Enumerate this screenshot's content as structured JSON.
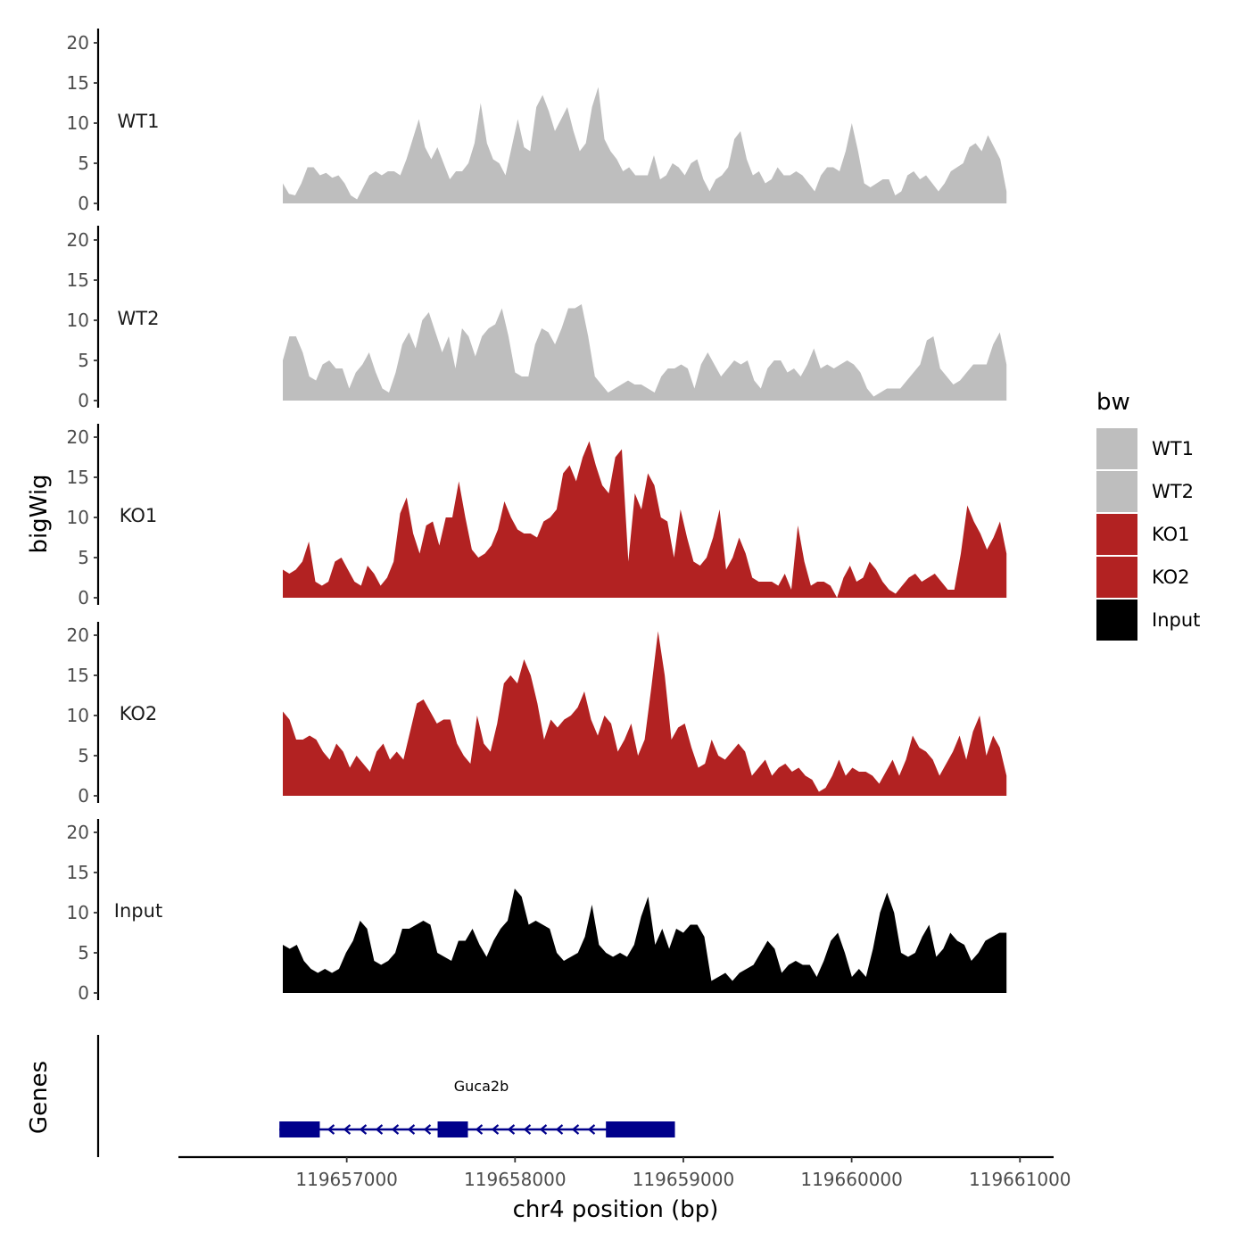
{
  "chart_data": {
    "type": "area",
    "ylabel": "bigWig",
    "xlabel": "chr4 position (bp)",
    "ylim": [
      0,
      21
    ],
    "y_ticks": [
      "0",
      "5",
      "10",
      "15",
      "20"
    ],
    "x_range": [
      119656620,
      119660920
    ],
    "x_axis_range": [
      119656000,
      119661200
    ],
    "x_ticks": [
      {
        "value": 119657000,
        "label": "119657000"
      },
      {
        "value": 119658000,
        "label": "119658000"
      },
      {
        "value": 119659000,
        "label": "119659000"
      },
      {
        "value": 119660000,
        "label": "119660000"
      },
      {
        "value": 119661000,
        "label": "119661000"
      }
    ],
    "legend": {
      "title": "bw",
      "position": "right",
      "entries": [
        {
          "label": "WT1",
          "color": "#bebebe"
        },
        {
          "label": "WT2",
          "color": "#bebebe"
        },
        {
          "label": "KO1",
          "color": "#b22222"
        },
        {
          "label": "KO2",
          "color": "#b22222"
        },
        {
          "label": "Input",
          "color": "#000000"
        }
      ]
    },
    "series": [
      {
        "name": "WT1",
        "color": "#bebebe",
        "values": [
          2.5,
          1.2,
          1.0,
          2.5,
          4.5,
          4.5,
          3.5,
          3.8,
          3.2,
          3.5,
          2.5,
          1.0,
          0.5,
          2.0,
          3.5,
          4.0,
          3.5,
          4.0,
          4.0,
          3.5,
          5.5,
          8.0,
          10.5,
          7.0,
          5.5,
          7.0,
          5.0,
          3.0,
          4.0,
          4.0,
          5.0,
          7.5,
          12.5,
          7.5,
          5.5,
          5.0,
          3.5,
          7.0,
          10.5,
          7.0,
          6.5,
          12.0,
          13.5,
          11.5,
          9.0,
          10.5,
          12.0,
          9.0,
          6.5,
          7.5,
          12.0,
          14.5,
          8.0,
          6.5,
          5.5,
          4.0,
          4.5,
          3.5,
          3.5,
          3.5,
          6.0,
          3.0,
          3.5,
          5.0,
          4.5,
          3.5,
          5.0,
          5.5,
          3.0,
          1.5,
          3.0,
          3.5,
          4.5,
          8.0,
          9.0,
          5.5,
          3.5,
          4.0,
          2.5,
          3.0,
          4.5,
          3.5,
          3.5,
          4.0,
          3.5,
          2.5,
          1.5,
          3.5,
          4.5,
          4.5,
          4.0,
          6.5,
          10.0,
          6.5,
          2.5,
          2.0,
          2.5,
          3.0,
          3.0,
          1.0,
          1.5,
          3.5,
          4.0,
          3.0,
          3.5,
          2.5,
          1.5,
          2.5,
          4.0,
          4.5,
          5.0,
          7.0,
          7.5,
          6.5,
          8.5,
          7.0,
          5.5,
          1.5
        ]
      },
      {
        "name": "WT2",
        "color": "#bebebe",
        "values": [
          5.0,
          8.0,
          8.0,
          6.0,
          3.0,
          2.5,
          4.5,
          5.0,
          4.0,
          4.0,
          1.5,
          3.5,
          4.5,
          6.0,
          3.5,
          1.5,
          1.0,
          3.5,
          7.0,
          8.5,
          6.5,
          10.0,
          11.0,
          8.5,
          6.0,
          8.0,
          4.0,
          9.0,
          8.0,
          5.5,
          8.0,
          9.0,
          9.5,
          11.5,
          8.0,
          3.5,
          3.0,
          3.0,
          7.0,
          9.0,
          8.5,
          7.0,
          9.0,
          11.5,
          11.5,
          12.0,
          8.0,
          3.0,
          2.0,
          1.0,
          1.5,
          2.0,
          2.5,
          2.0,
          2.0,
          1.5,
          1.0,
          3.0,
          4.0,
          4.0,
          4.5,
          4.0,
          1.5,
          4.5,
          6.0,
          4.5,
          3.0,
          4.0,
          5.0,
          4.5,
          5.0,
          2.5,
          1.5,
          4.0,
          5.0,
          5.0,
          3.5,
          4.0,
          3.0,
          4.5,
          6.5,
          4.0,
          4.5,
          4.0,
          4.5,
          5.0,
          4.5,
          3.5,
          1.5,
          0.5,
          1.0,
          1.5,
          1.5,
          1.5,
          2.5,
          3.5,
          4.5,
          7.5,
          8.0,
          4.0,
          3.0,
          2.0,
          2.5,
          3.5,
          4.5,
          4.5,
          4.5,
          7.0,
          8.5,
          4.5
        ]
      },
      {
        "name": "KO1",
        "color": "#b22222",
        "values": [
          3.5,
          3.0,
          3.5,
          4.5,
          7.0,
          2.0,
          1.5,
          2.0,
          4.5,
          5.0,
          3.5,
          2.0,
          1.5,
          4.0,
          3.0,
          1.5,
          2.5,
          4.5,
          10.5,
          12.5,
          8.0,
          5.5,
          9.0,
          9.5,
          6.5,
          10.0,
          10.0,
          14.5,
          10.0,
          6.0,
          5.0,
          5.5,
          6.5,
          8.5,
          12.0,
          10.0,
          8.5,
          8.0,
          8.0,
          7.5,
          9.5,
          10.0,
          11.0,
          15.5,
          16.5,
          14.5,
          17.5,
          19.5,
          16.5,
          14.0,
          13.0,
          17.5,
          18.5,
          4.5,
          13.0,
          11.0,
          15.5,
          14.0,
          10.0,
          9.5,
          5.0,
          11.0,
          7.5,
          4.5,
          4.0,
          5.0,
          7.5,
          11.0,
          3.5,
          5.0,
          7.5,
          5.5,
          2.5,
          2.0,
          2.0,
          2.0,
          1.5,
          3.0,
          1.0,
          9.0,
          4.5,
          1.5,
          2.0,
          2.0,
          1.5,
          0.0,
          2.5,
          4.0,
          2.0,
          2.5,
          4.5,
          3.5,
          2.0,
          1.0,
          0.5,
          1.5,
          2.5,
          3.0,
          2.0,
          2.5,
          3.0,
          2.0,
          1.0,
          1.0,
          5.5,
          11.5,
          9.5,
          8.0,
          6.0,
          7.5,
          9.5,
          5.5
        ]
      },
      {
        "name": "KO2",
        "color": "#b22222",
        "values": [
          10.5,
          9.5,
          7.0,
          7.0,
          7.5,
          7.0,
          5.5,
          4.5,
          6.5,
          5.5,
          3.5,
          5.0,
          4.0,
          3.0,
          5.5,
          6.5,
          4.5,
          5.5,
          4.5,
          8.0,
          11.5,
          12.0,
          10.5,
          9.0,
          9.5,
          9.5,
          6.5,
          5.0,
          4.0,
          10.0,
          6.5,
          5.5,
          9.0,
          14.0,
          15.0,
          14.0,
          17.0,
          15.0,
          11.5,
          7.0,
          9.5,
          8.5,
          9.5,
          10.0,
          11.0,
          13.0,
          9.5,
          7.5,
          10.0,
          9.0,
          5.5,
          7.0,
          9.0,
          5.0,
          7.0,
          13.5,
          20.5,
          15.0,
          7.0,
          8.5,
          9.0,
          6.0,
          3.5,
          4.0,
          7.0,
          5.0,
          4.5,
          5.5,
          6.5,
          5.5,
          2.5,
          3.5,
          4.5,
          2.5,
          3.5,
          4.0,
          3.0,
          3.5,
          2.5,
          2.0,
          0.5,
          1.0,
          2.5,
          4.5,
          2.5,
          3.5,
          3.0,
          3.0,
          2.5,
          1.5,
          3.0,
          4.5,
          2.5,
          4.5,
          7.5,
          6.0,
          5.5,
          4.5,
          2.5,
          4.0,
          5.5,
          7.5,
          4.5,
          8.0,
          10.0,
          5.0,
          7.5,
          6.0,
          2.5
        ]
      },
      {
        "name": "Input",
        "color": "#000000",
        "values": [
          6.0,
          5.5,
          6.0,
          4.0,
          3.0,
          2.5,
          3.0,
          2.5,
          3.0,
          5.0,
          6.5,
          9.0,
          8.0,
          4.0,
          3.5,
          4.0,
          5.0,
          8.0,
          8.0,
          8.5,
          9.0,
          8.5,
          5.0,
          4.5,
          4.0,
          6.5,
          6.5,
          8.0,
          6.0,
          4.5,
          6.5,
          8.0,
          9.0,
          13.0,
          12.0,
          8.5,
          9.0,
          8.5,
          8.0,
          5.0,
          4.0,
          4.5,
          5.0,
          7.0,
          11.0,
          6.0,
          5.0,
          4.5,
          5.0,
          4.5,
          6.0,
          9.5,
          12.0,
          6.0,
          8.0,
          5.5,
          8.0,
          7.5,
          8.5,
          8.5,
          7.0,
          1.5,
          2.0,
          2.5,
          1.5,
          2.5,
          3.0,
          3.5,
          5.0,
          6.5,
          5.5,
          2.5,
          3.5,
          4.0,
          3.5,
          3.5,
          2.0,
          4.0,
          6.5,
          7.5,
          5.0,
          2.0,
          3.0,
          2.0,
          5.5,
          10.0,
          12.5,
          10.0,
          5.0,
          4.5,
          5.0,
          7.0,
          8.5,
          4.5,
          5.5,
          7.5,
          6.5,
          6.0,
          4.0,
          5.0,
          6.5,
          7.0,
          7.5,
          7.5
        ]
      }
    ],
    "genes_track": {
      "label": "Genes",
      "gene_name": "Guca2b",
      "strand": "-",
      "color": "#00008b",
      "span": [
        119656600,
        119658950
      ],
      "exons": [
        [
          119656600,
          119656840
        ],
        [
          119657540,
          119657720
        ],
        [
          119658540,
          119658950
        ]
      ]
    }
  }
}
